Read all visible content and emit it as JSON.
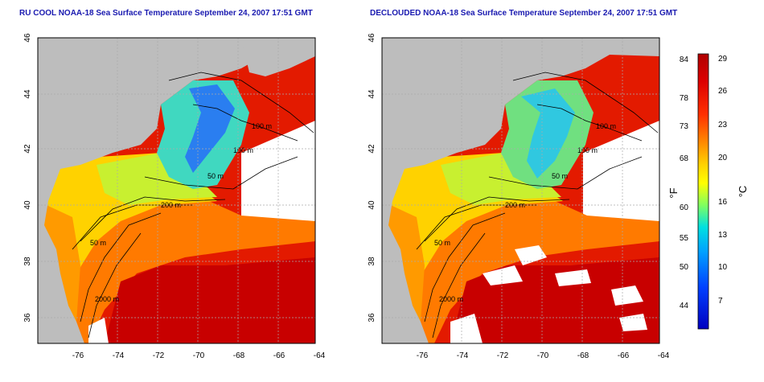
{
  "maps": [
    {
      "title": "RU COOL NOAA-18 Sea Surface Temperature September 24, 2007 17:51 GMT",
      "x_ticks": [
        "-76",
        "-74",
        "-72",
        "-70",
        "-68",
        "-66",
        "-64"
      ],
      "y_ticks": [
        "46",
        "44",
        "42",
        "40",
        "38",
        "36"
      ],
      "contour_labels": [
        "100 m",
        "100 m",
        "50 m",
        "200 m",
        "50 m",
        "2000 m"
      ]
    },
    {
      "title": "DECLOUDED NOAA-18 Sea Surface Temperature September 24, 2007 17:51 GMT",
      "x_ticks": [
        "-76",
        "-74",
        "-72",
        "-70",
        "-68",
        "-66",
        "-64"
      ],
      "y_ticks": [
        "46",
        "44",
        "42",
        "40",
        "38",
        "36"
      ],
      "contour_labels": [
        "100 m",
        "100 m",
        "50 m",
        "200 m",
        "50 m",
        "2000 m"
      ]
    }
  ],
  "colorbar": {
    "f_label": "°F",
    "c_label": "°C",
    "f_ticks": [
      "84",
      "78",
      "73",
      "68",
      "60",
      "55",
      "50",
      "44"
    ],
    "c_ticks": [
      "29",
      "26",
      "23",
      "20",
      "16",
      "13",
      "10",
      "7"
    ],
    "gradient_colors": [
      "#b00000",
      "#dd0000",
      "#ff3000",
      "#ff8800",
      "#ffd000",
      "#ffff00",
      "#80ff60",
      "#00e0e0",
      "#00a0ff",
      "#0040ff",
      "#0000c0"
    ]
  },
  "colors": {
    "land": "#bdbdbd",
    "no_data": "#ffffff",
    "title": "#1a1ab0"
  }
}
